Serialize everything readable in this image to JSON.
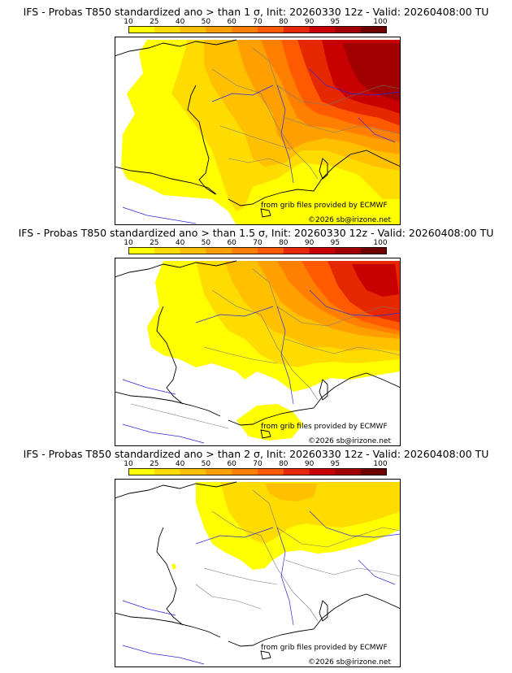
{
  "colors": {
    "ocean": "#ffffff",
    "coast": "#000000",
    "border": "#777777",
    "river": "#2b2bd6",
    "frame": "#000000",
    "levels": [
      "#ffff00",
      "#ffdc00",
      "#ffc000",
      "#ffa000",
      "#ff8000",
      "#ff5a00",
      "#e62800",
      "#c80000",
      "#a00000",
      "#6e0000"
    ]
  },
  "colorbar": {
    "ticks": [
      "10",
      "25",
      "40",
      "50",
      "60",
      "70",
      "80",
      "90",
      "95",
      "100"
    ]
  },
  "credits": {
    "source": "from grib files provided by ECMWF",
    "copyright": "©2026 sb@irizone.net"
  },
  "panels": [
    {
      "title": "IFS - Probas T850  standardized ano > than 1 σ, Init: 20260330 12z - Valid: 20260408:00 TU",
      "threshold": "1"
    },
    {
      "title": "IFS - Probas T850  standardized ano > than 1.5 σ, Init: 20260330 12z - Valid: 20260408:00 TU",
      "threshold": "1.5"
    },
    {
      "title": "IFS - Probas T850  standardized ano > than 2 σ, Init: 20260330 12z - Valid: 20260408:00 TU",
      "threshold": "2"
    }
  ]
}
